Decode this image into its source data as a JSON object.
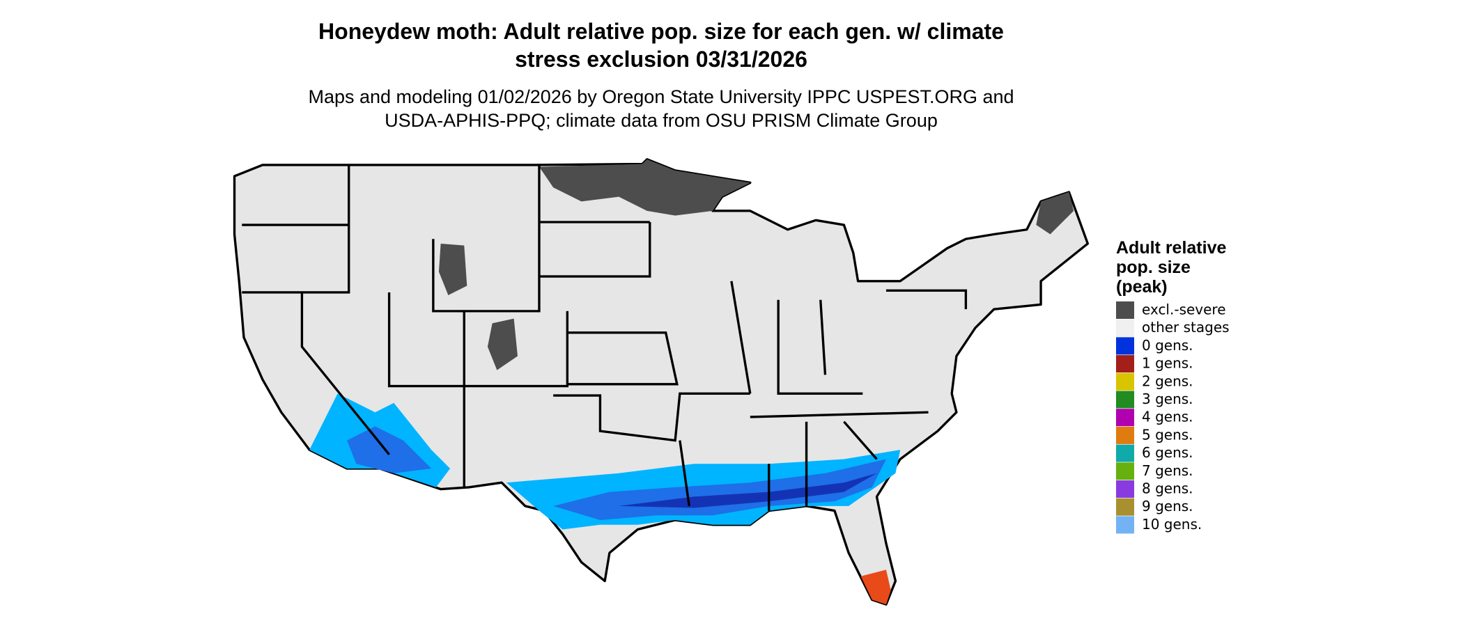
{
  "header": {
    "title": [
      "Honeydew moth: Adult relative pop. size for each gen. w/ climate",
      "stress exclusion 03/31/2026"
    ],
    "subtitle": [
      "Maps and modeling 01/02/2026 by Oregon State University IPPC USPEST.ORG and",
      "USDA-APHIS-PPQ; climate data from OSU PRISM Climate Group"
    ]
  },
  "legend": {
    "title": [
      "Adult relative",
      "pop. size",
      "(peak)"
    ],
    "items": [
      {
        "label": "excl.-severe",
        "color": "#4d4d4d"
      },
      {
        "label": "other stages",
        "color": "#f0f0f0"
      },
      {
        "label": "0 gens.",
        "color": "#0033dd"
      },
      {
        "label": "1 gens.",
        "color": "#a31f1a"
      },
      {
        "label": "2 gens.",
        "color": "#d9c400"
      },
      {
        "label": "3 gens.",
        "color": "#228b22"
      },
      {
        "label": "4 gens.",
        "color": "#b000b0"
      },
      {
        "label": "5 gens.",
        "color": "#e07b10"
      },
      {
        "label": "6 gens.",
        "color": "#10aaaa"
      },
      {
        "label": "7 gens.",
        "color": "#66b010"
      },
      {
        "label": "8 gens.",
        "color": "#8a3be0"
      },
      {
        "label": "9 gens.",
        "color": "#a89030"
      },
      {
        "label": "10 gens.",
        "color": "#73b3f5"
      }
    ]
  }
}
